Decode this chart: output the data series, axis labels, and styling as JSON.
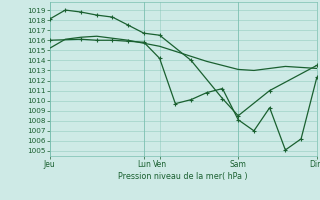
{
  "background_color": "#ceeae6",
  "grid_color": "#7abfb0",
  "line_color": "#1a6030",
  "ylabel": "Pression niveau de la mer( hPa )",
  "ylim": [
    1004.5,
    1019.8
  ],
  "yticks": [
    1005,
    1006,
    1007,
    1008,
    1009,
    1010,
    1011,
    1012,
    1013,
    1014,
    1015,
    1016,
    1017,
    1018,
    1019
  ],
  "xlim": [
    0,
    17
  ],
  "xtick_labels": [
    "Jeu",
    "Lun",
    "Ven",
    "Sam",
    "Dim"
  ],
  "xtick_positions": [
    0,
    6,
    7,
    12,
    17
  ],
  "vline_positions": [
    0,
    6,
    12,
    17
  ],
  "line1_smooth": {
    "x": [
      0,
      1,
      2,
      3,
      4,
      5,
      6,
      7,
      8,
      9,
      10,
      11,
      12,
      13,
      14,
      15,
      16,
      17
    ],
    "y": [
      1015.2,
      1016.1,
      1016.3,
      1016.4,
      1016.2,
      1016.0,
      1015.7,
      1015.4,
      1014.9,
      1014.4,
      1013.9,
      1013.5,
      1013.1,
      1013.0,
      1013.2,
      1013.4,
      1013.3,
      1013.2
    ],
    "lw": 0.9
  },
  "line2": {
    "x": [
      0,
      1,
      2,
      3,
      4,
      5,
      6,
      7,
      9,
      11,
      12,
      14,
      17
    ],
    "y": [
      1018.1,
      1019.0,
      1018.8,
      1018.5,
      1018.3,
      1017.5,
      1016.7,
      1016.5,
      1014.0,
      1010.2,
      1008.5,
      1011.0,
      1013.5
    ],
    "lw": 0.9
  },
  "line3": {
    "x": [
      0,
      2,
      3,
      4,
      5,
      6,
      7,
      8,
      9,
      10,
      11,
      12,
      13,
      14,
      15,
      16,
      17
    ],
    "y": [
      1016.0,
      1016.1,
      1016.0,
      1016.0,
      1015.9,
      1015.8,
      1014.2,
      1009.7,
      1010.1,
      1010.8,
      1011.2,
      1008.1,
      1007.0,
      1009.3,
      1005.1,
      1006.2,
      1012.3
    ],
    "lw": 0.9
  },
  "marker": "+",
  "markersize": 3.5,
  "markeredgewidth": 0.8
}
